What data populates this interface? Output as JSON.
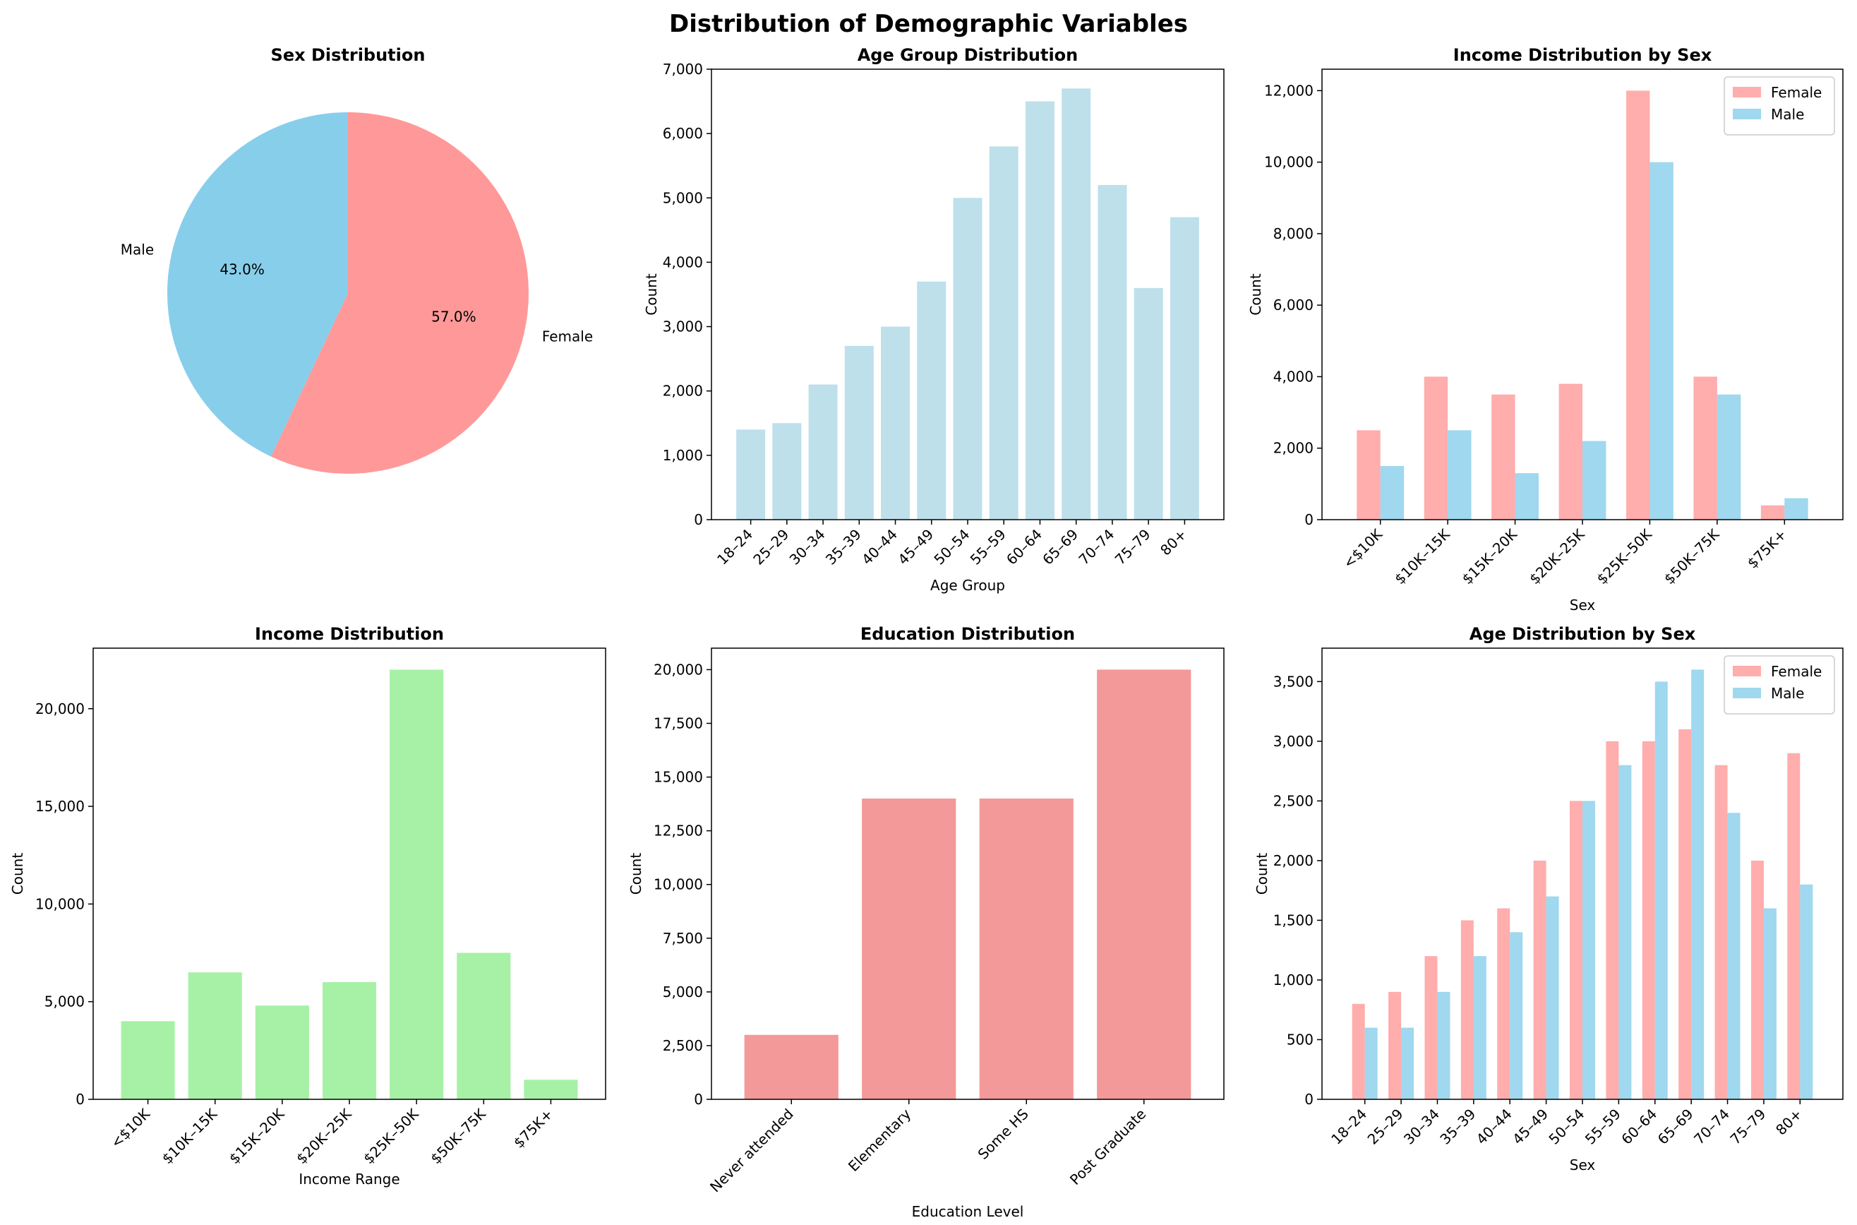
{
  "figure": {
    "title": "Distribution of Demographic Variables",
    "colors": {
      "female_pie": "#ff9999",
      "male_pie": "#87ceeb",
      "age_bar": "#add8e6",
      "income_bar": "#90ee90",
      "education_bar": "#f08080",
      "female_bar": "#ff9999",
      "male_bar": "#87ceeb"
    }
  },
  "chart_data": [
    {
      "id": "sex",
      "type": "pie",
      "title": "Sex Distribution",
      "labels": [
        "Female",
        "Male"
      ],
      "values": [
        57.0,
        43.0
      ],
      "pct_labels": [
        "57.0%",
        "43.0%"
      ],
      "colors": [
        "#ff9999",
        "#87ceeb"
      ]
    },
    {
      "id": "age",
      "type": "bar",
      "title": "Age Group Distribution",
      "xlabel": "Age Group",
      "ylabel": "Count",
      "categories": [
        "18–24",
        "25–29",
        "30–34",
        "35–39",
        "40–44",
        "45–49",
        "50–54",
        "55–59",
        "60–64",
        "65–69",
        "70–74",
        "75–79",
        "80+"
      ],
      "values": [
        1400,
        1500,
        2100,
        2700,
        3000,
        3700,
        5000,
        5800,
        6500,
        6700,
        5200,
        3600,
        4700
      ],
      "ylim": [
        0,
        7000
      ],
      "yticks": [
        0,
        1000,
        2000,
        3000,
        4000,
        5000,
        6000,
        7000
      ],
      "color": "#add8e6"
    },
    {
      "id": "income_sex",
      "type": "bar",
      "title": "Income Distribution by Sex",
      "xlabel": "Sex",
      "ylabel": "Count",
      "categories": [
        "<$10K",
        "$10K–15K",
        "$15K–20K",
        "$20K–25K",
        "$25K–50K",
        "$50K–75K",
        "$75K+"
      ],
      "series": [
        {
          "name": "Female",
          "values": [
            2500,
            4000,
            3500,
            3800,
            12000,
            4000,
            400
          ],
          "color": "#ff9999"
        },
        {
          "name": "Male",
          "values": [
            1500,
            2500,
            1300,
            2200,
            10000,
            3500,
            600
          ],
          "color": "#87ceeb"
        }
      ],
      "ylim": [
        0,
        12600
      ],
      "yticks": [
        0,
        2000,
        4000,
        6000,
        8000,
        10000,
        12000
      ],
      "legend": "top-right"
    },
    {
      "id": "income",
      "type": "bar",
      "title": "Income Distribution",
      "xlabel": "Income Range",
      "ylabel": "Count",
      "categories": [
        "<$10K",
        "$10K–15K",
        "$15K–20K",
        "$20K–25K",
        "$25K–50K",
        "$50K–75K",
        "$75K+"
      ],
      "values": [
        4000,
        6500,
        4800,
        6000,
        22000,
        7500,
        1000
      ],
      "ylim": [
        0,
        23100
      ],
      "yticks": [
        0,
        5000,
        10000,
        15000,
        20000
      ],
      "color": "#90ee90"
    },
    {
      "id": "education",
      "type": "bar",
      "title": "Education Distribution",
      "xlabel": "Education Level",
      "ylabel": "Count",
      "categories": [
        "Never attended",
        "Elementary",
        "Some HS",
        "Post Graduate"
      ],
      "values": [
        3000,
        14000,
        14000,
        20000
      ],
      "ylim": [
        0,
        21000
      ],
      "yticks": [
        0,
        2500,
        5000,
        7500,
        10000,
        12500,
        15000,
        17500,
        20000
      ],
      "color": "#f08080"
    },
    {
      "id": "age_sex",
      "type": "bar",
      "title": "Age Distribution by Sex",
      "xlabel": "Sex",
      "ylabel": "Count",
      "categories": [
        "18–24",
        "25–29",
        "30–34",
        "35–39",
        "40–44",
        "45–49",
        "50–54",
        "55–59",
        "60–64",
        "65–69",
        "70–74",
        "75–79",
        "80+"
      ],
      "series": [
        {
          "name": "Female",
          "values": [
            800,
            900,
            1200,
            1500,
            1600,
            2000,
            2500,
            3000,
            3000,
            3100,
            2800,
            2000,
            2900
          ],
          "color": "#ff9999"
        },
        {
          "name": "Male",
          "values": [
            600,
            600,
            900,
            1200,
            1400,
            1700,
            2500,
            2800,
            3500,
            3600,
            2400,
            1600,
            1800
          ],
          "color": "#87ceeb"
        }
      ],
      "ylim": [
        0,
        3780
      ],
      "yticks": [
        0,
        500,
        1000,
        1500,
        2000,
        2500,
        3000,
        3500
      ],
      "legend": "top-right"
    }
  ]
}
